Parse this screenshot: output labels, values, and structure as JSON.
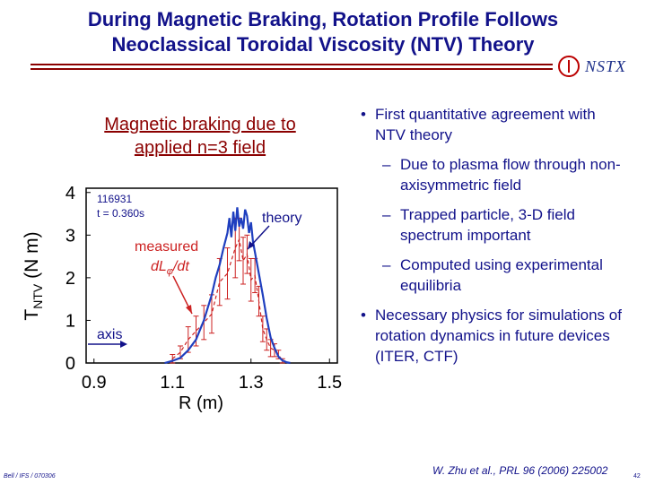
{
  "slide": {
    "title_line1": "During Magnetic Braking, Rotation Profile Follows",
    "title_line2": "Neoclassical Toroidal Viscosity (NTV) Theory",
    "logo_text": "NSTX",
    "callout": "Magnetic braking due to applied n=3 field",
    "footer_left": "Bell / IFS / 070306",
    "footer_citation": "W. Zhu et al., PRL 96 (2006) 225002",
    "page_number": "42"
  },
  "bullets": [
    {
      "text": "First quantitative agreement with NTV theory",
      "subs": [
        "Due to plasma flow through non-axisymmetric field",
        "Trapped particle, 3-D field spectrum important",
        "Computed using experimental equilibria"
      ]
    },
    {
      "text": "Necessary physics for simulations of rotation dynamics in future devices (ITER, CTF)",
      "subs": []
    }
  ],
  "chart_data": {
    "type": "line",
    "xlabel": "R (m)",
    "ylabel": "T",
    "ylabel_sub": "NTV",
    "ylabel_unit": " (N m)",
    "xticks": [
      "0.9",
      "1.1",
      "1.3",
      "1.5"
    ],
    "yticks": [
      "0",
      "1",
      "2",
      "3",
      "4"
    ],
    "xlim": [
      0.88,
      1.52
    ],
    "ylim": [
      0,
      4.1
    ],
    "shot_label_1": "116931",
    "shot_label_2": "t = 0.360s",
    "annotations": {
      "theory": "theory",
      "measured_1": "measured",
      "measured_2": "dL",
      "measured_sub": "φ",
      "measured_3": "/dt",
      "axis": "axis"
    },
    "colors": {
      "theory": "#1f3fbf",
      "measured": "#cc2222",
      "text": "#12128a",
      "measured_text": "#cc2222"
    },
    "series": [
      {
        "name": "theory",
        "x": [
          1.08,
          1.1,
          1.12,
          1.14,
          1.16,
          1.18,
          1.2,
          1.21,
          1.22,
          1.23,
          1.24,
          1.245,
          1.25,
          1.255,
          1.26,
          1.265,
          1.27,
          1.275,
          1.28,
          1.285,
          1.29,
          1.295,
          1.3,
          1.305,
          1.31,
          1.32,
          1.33,
          1.34,
          1.35,
          1.36,
          1.37,
          1.38,
          1.39,
          1.4
        ],
        "y": [
          0.0,
          0.05,
          0.12,
          0.3,
          0.55,
          1.0,
          1.6,
          2.0,
          2.3,
          2.7,
          3.05,
          3.4,
          2.95,
          3.55,
          3.1,
          3.65,
          3.2,
          3.4,
          3.15,
          3.6,
          3.45,
          3.05,
          3.3,
          2.85,
          2.6,
          2.1,
          1.6,
          1.05,
          0.6,
          0.35,
          0.15,
          0.06,
          0.02,
          0.0
        ]
      },
      {
        "name": "measured",
        "x": [
          1.1,
          1.12,
          1.14,
          1.16,
          1.18,
          1.2,
          1.22,
          1.24,
          1.26,
          1.27,
          1.28,
          1.29,
          1.3,
          1.31,
          1.32,
          1.33,
          1.34,
          1.35,
          1.36,
          1.37,
          1.38
        ],
        "y": [
          0.1,
          0.25,
          0.55,
          0.75,
          0.95,
          1.15,
          1.9,
          2.1,
          2.7,
          2.9,
          2.4,
          2.55,
          1.95,
          2.05,
          1.45,
          0.8,
          0.55,
          0.35,
          0.3,
          0.2,
          0.05
        ],
        "err": [
          0.1,
          0.15,
          0.3,
          0.35,
          0.4,
          0.45,
          0.55,
          0.6,
          0.7,
          0.5,
          0.55,
          0.45,
          0.5,
          0.4,
          0.35,
          0.3,
          0.25,
          0.2,
          0.15,
          0.1,
          0.05
        ]
      }
    ]
  }
}
